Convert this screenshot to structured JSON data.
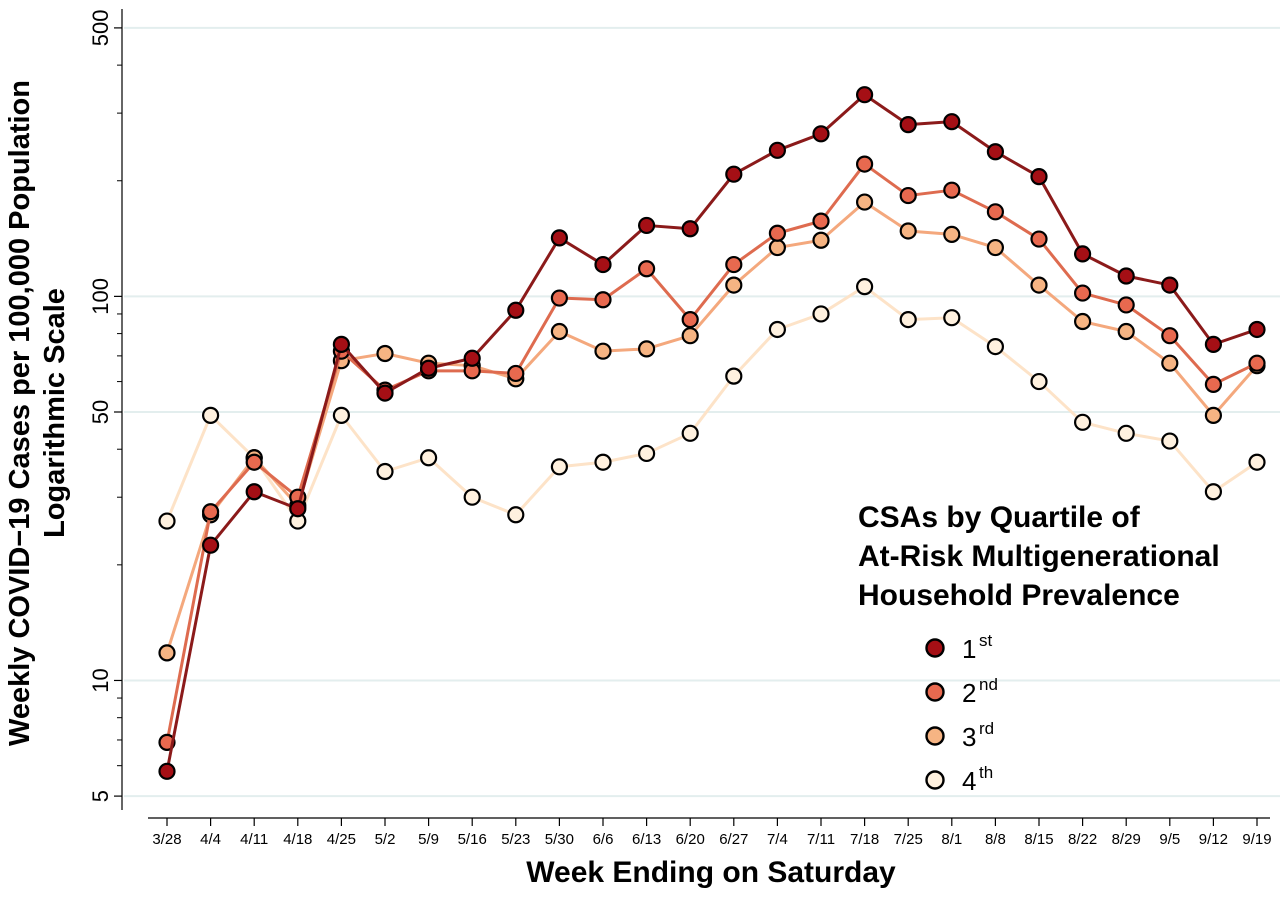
{
  "chart_data": {
    "type": "line",
    "xlabel": "Week Ending on Saturday",
    "ylabel_line1": "Weekly COVID−19 Cases per 100,000 Population",
    "ylabel_line2": "Logarithmic Scale",
    "y_scale": "log",
    "ylim": [
      4.6,
      560
    ],
    "y_ticks": [
      5,
      10,
      50,
      100,
      500
    ],
    "y_tick_labels": [
      "5",
      "10",
      "50",
      "100",
      "500"
    ],
    "grid": true,
    "categories": [
      "3/28",
      "4/4",
      "4/11",
      "4/18",
      "4/25",
      "5/2",
      "5/9",
      "5/16",
      "5/23",
      "5/30",
      "6/6",
      "6/13",
      "6/20",
      "6/27",
      "7/4",
      "7/11",
      "7/18",
      "7/25",
      "8/1",
      "8/8",
      "8/15",
      "8/22",
      "8/29",
      "9/5",
      "9/12",
      "9/19"
    ],
    "legend": {
      "title_lines": [
        "CSAs by Quartile of",
        "At-Risk Multigenerational",
        "Household Prevalence"
      ],
      "placement": "bottom-right"
    },
    "series": [
      {
        "name": "1",
        "sup": "st",
        "line_color": "#8b1a1a",
        "fill_color": "#a50f15",
        "values": [
          5.8,
          22.5,
          31,
          28,
          75,
          56,
          65,
          69,
          92,
          142,
          121,
          153,
          150,
          208,
          240,
          265,
          335,
          280,
          285,
          238,
          205,
          129,
          113,
          107,
          75,
          82
        ]
      },
      {
        "name": "2",
        "sup": "nd",
        "line_color": "#de6b4f",
        "fill_color": "#e8694f",
        "values": [
          6.9,
          27.5,
          37,
          30,
          72,
          57,
          64,
          64,
          63,
          99,
          98,
          118,
          87,
          121,
          146,
          157,
          221,
          183,
          189,
          166,
          141,
          102,
          95,
          79,
          59,
          67
        ]
      },
      {
        "name": "3",
        "sup": "rd",
        "line_color": "#f4a87d",
        "fill_color": "#f6b483",
        "values": [
          11.8,
          27,
          38,
          28.5,
          68,
          71,
          67,
          66,
          61,
          81,
          72,
          73,
          79,
          107,
          134,
          140,
          176,
          148,
          145,
          134,
          107,
          86,
          81,
          67,
          49,
          66
        ]
      },
      {
        "name": "4",
        "sup": "th",
        "line_color": "#fde3c8",
        "fill_color": "#fff1df",
        "values": [
          26,
          49,
          38,
          26,
          49,
          35,
          38,
          30,
          27,
          36,
          37,
          39,
          44,
          62,
          82,
          90,
          106,
          87,
          88,
          74,
          60,
          47,
          44,
          42,
          31,
          37
        ]
      }
    ]
  }
}
